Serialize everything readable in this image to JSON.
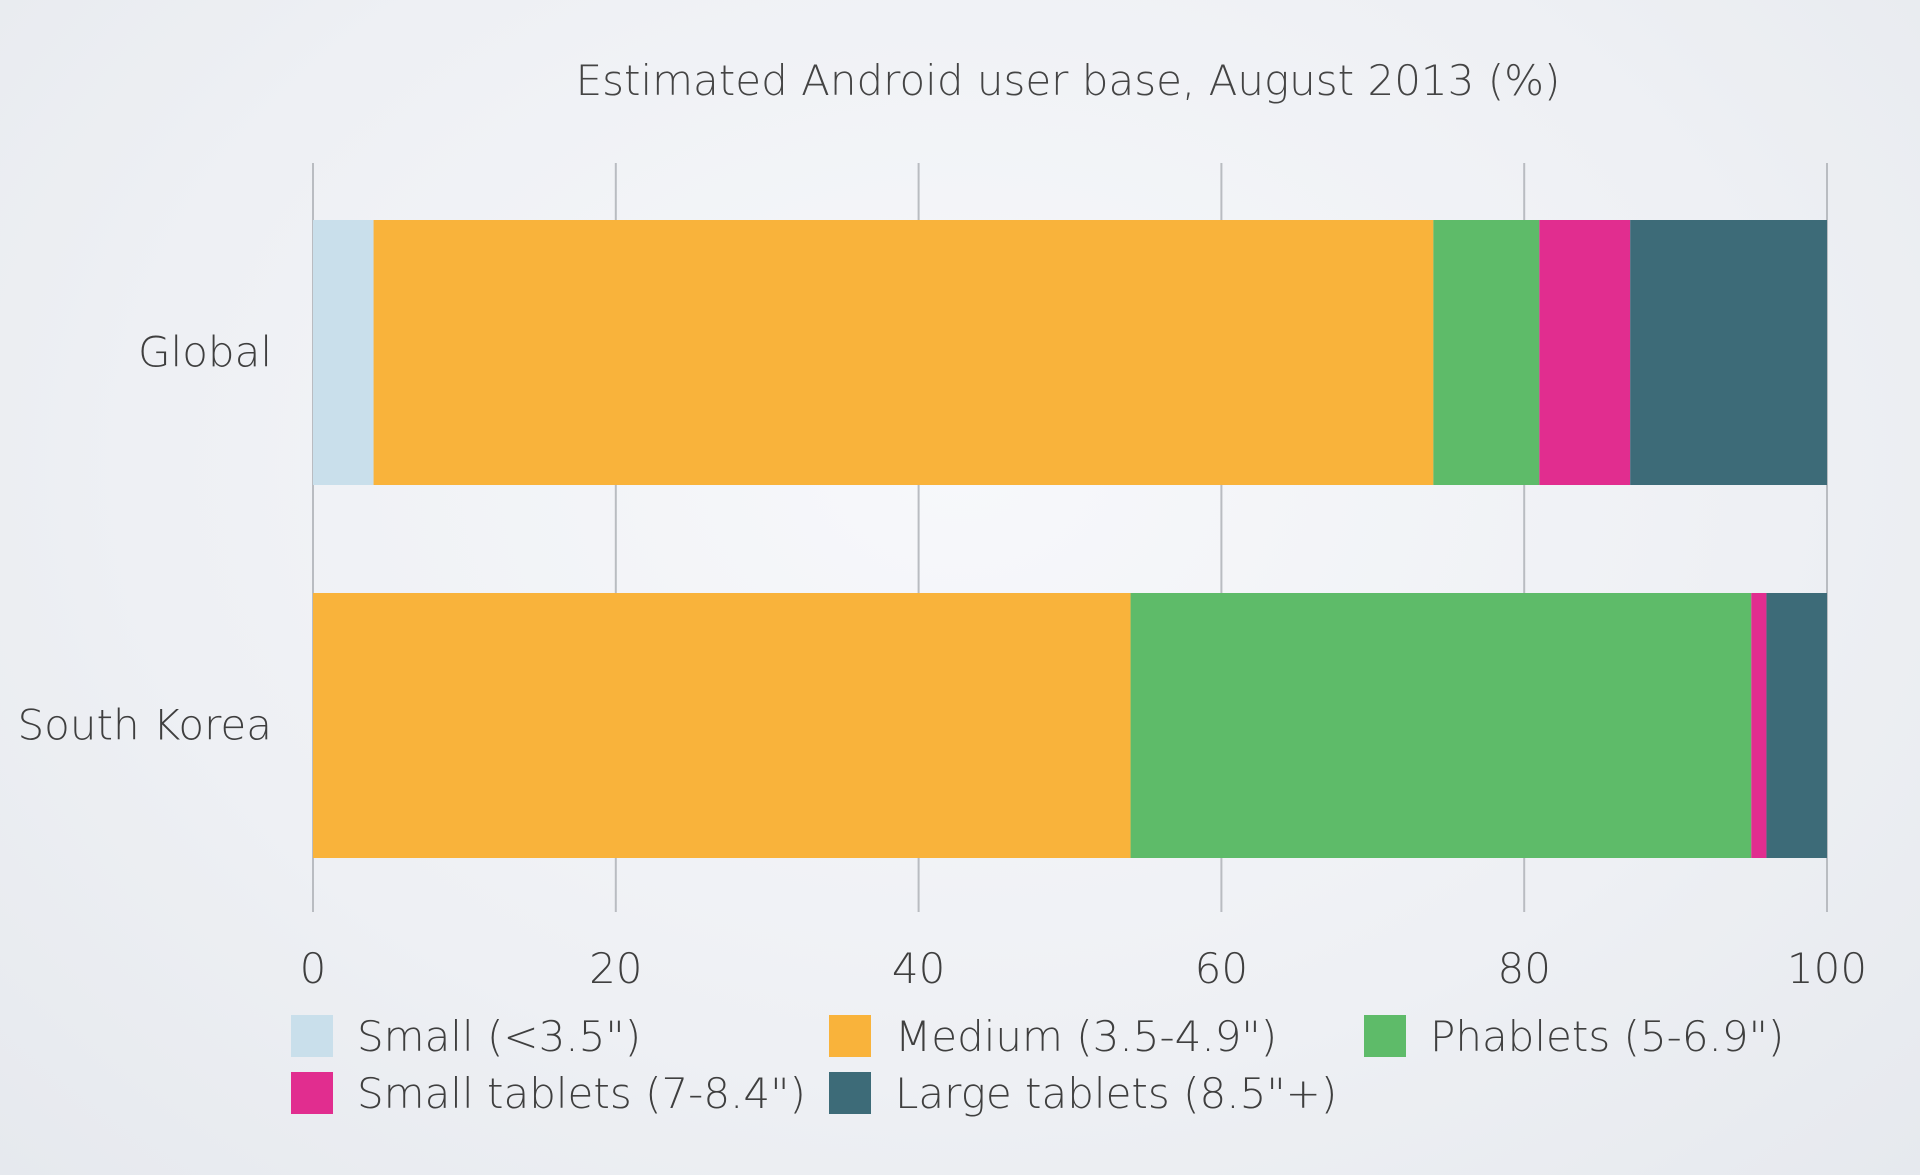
{
  "chart_data": {
    "type": "bar",
    "orientation": "horizontal",
    "stacked": true,
    "title": "Estimated Android user base, August 2013 (%)",
    "xlabel": "",
    "ylabel": "",
    "categories": [
      "Global",
      "South Korea"
    ],
    "xlim": [
      0,
      100
    ],
    "xticks": [
      0,
      20,
      40,
      60,
      80,
      100
    ],
    "xtick_labels": [
      "0",
      "20",
      "40",
      "60",
      "80",
      "100"
    ],
    "grid": "vertical",
    "legend_position": "bottom",
    "series": [
      {
        "name": "Small (<3.5\")",
        "color": "#c9dfeb",
        "values": [
          4,
          0
        ]
      },
      {
        "name": "Medium (3.5-4.9\")",
        "color": "#f9b33b",
        "values": [
          70,
          54
        ]
      },
      {
        "name": "Phablets (5-6.9\")",
        "color": "#5ebb69",
        "values": [
          7,
          41
        ]
      },
      {
        "name": "Small tablets (7-8.4\")",
        "color": "#e12d8f",
        "values": [
          6,
          1
        ]
      },
      {
        "name": "Large tablets (8.5\"+)",
        "color": "#3d6b78",
        "values": [
          13,
          4
        ]
      }
    ]
  }
}
